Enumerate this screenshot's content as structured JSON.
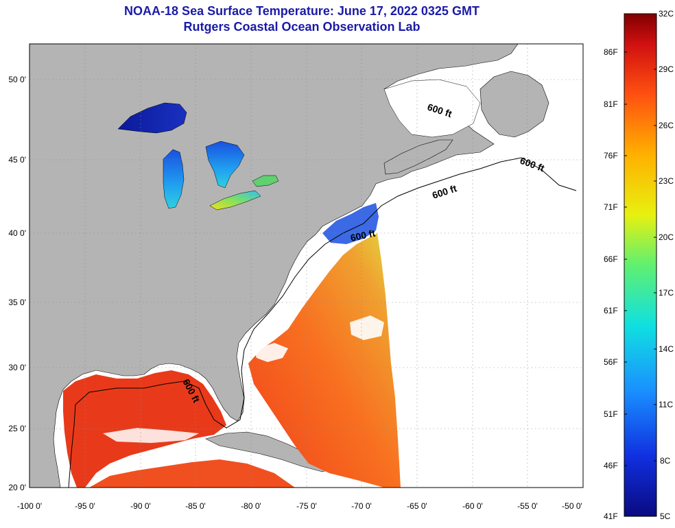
{
  "title": "NOAA-18 Sea Surface Temperature:  June 17, 2022 0325 GMT",
  "subtitle": "Rutgers Coastal Ocean Observation Lab",
  "axes": {
    "lon_labels": [
      "-100 0'",
      "-95 0'",
      "-90 0'",
      "-85 0'",
      "-80 0'",
      "-75 0'",
      "-70 0'",
      "-65 0'",
      "-60 0'",
      "-55 0'",
      "-50 0'"
    ],
    "lat_labels": [
      "50 0'",
      "45 0'",
      "40 0'",
      "35 0'",
      "30 0'",
      "25 0'",
      "20 0'"
    ]
  },
  "contour_labels": [
    "600 ft",
    "600 ft",
    "600 ft",
    "600 ft",
    "600 ft"
  ],
  "colorbar": {
    "celsius": [
      "32C",
      "29C",
      "26C",
      "23C",
      "20C",
      "17C",
      "14C",
      "11C",
      "8C",
      "5C"
    ],
    "fahrenheit": [
      "86F",
      "81F",
      "76F",
      "71F",
      "66F",
      "61F",
      "56F",
      "51F",
      "46F",
      "41F"
    ]
  },
  "colors": {
    "title": "#1a1aa8",
    "land": "#b4b4b4",
    "no_data": "#ffffff",
    "warm": "#e83a1a",
    "cold": "#0a1a9a"
  }
}
